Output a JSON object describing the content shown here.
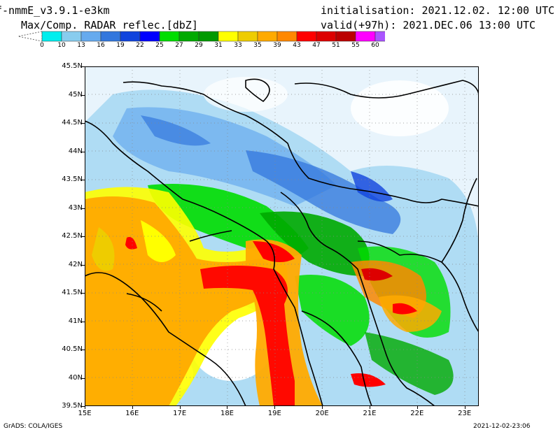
{
  "header": {
    "model": "f-nmmE_v3.9.1-e3km",
    "field": "Max/Comp. RADAR reflec.[dbZ]",
    "init": "initialisation: 2021.12.02. 12:00 UTC",
    "valid": "valid(+97h): 2021.DEC.06 13:00 UTC"
  },
  "colorbar": {
    "labels": [
      "0",
      "10",
      "13",
      "16",
      "19",
      "22",
      "25",
      "27",
      "29",
      "31",
      "33",
      "35",
      "39",
      "43",
      "47",
      "51",
      "55",
      "60"
    ],
    "colors": [
      "#00eeee",
      "#88ccee",
      "#66aaee",
      "#3377dd",
      "#1144dd",
      "#0000ff",
      "#00dd00",
      "#00aa00",
      "#009900",
      "#ffff00",
      "#eecc00",
      "#ffaa00",
      "#ff8800",
      "#ff0000",
      "#dd0000",
      "#bb0000",
      "#ff00ff",
      "#aa55ff",
      "#000000"
    ]
  },
  "map": {
    "lat_labels": [
      "45.5N",
      "45N",
      "44.5N",
      "44N",
      "43.5N",
      "43N",
      "42.5N",
      "42N",
      "41.5N",
      "41N",
      "40.5N",
      "40N",
      "39.5N"
    ],
    "lon_labels": [
      "15E",
      "16E",
      "17E",
      "18E",
      "19E",
      "20E",
      "21E",
      "22E",
      "23E"
    ],
    "lat_range": [
      39.5,
      45.5
    ],
    "lon_range": [
      15,
      23.3
    ],
    "grid": true
  },
  "footer": {
    "left": "GrADS: COLA/IGES",
    "right": "2021-12-02-23:06"
  }
}
